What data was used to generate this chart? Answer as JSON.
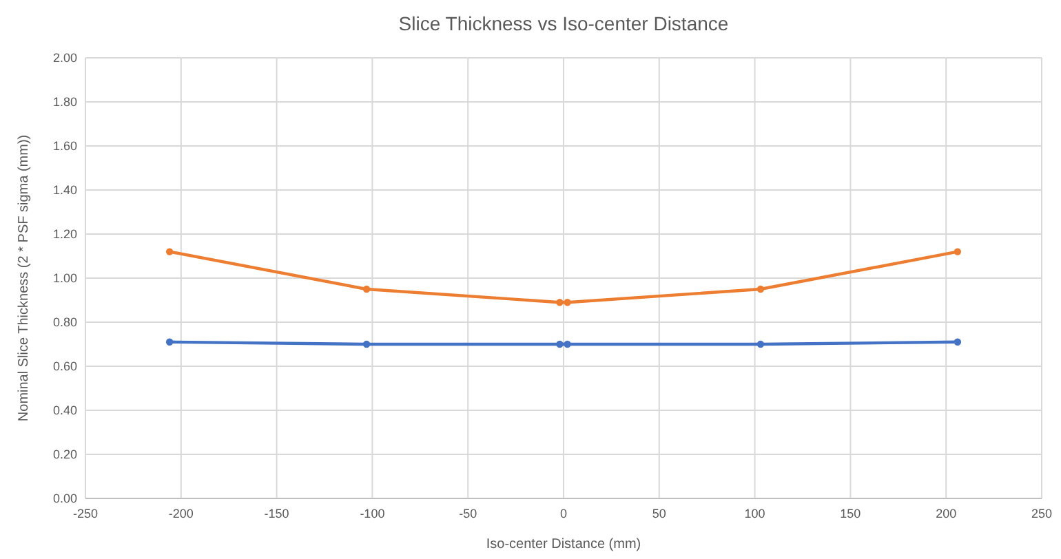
{
  "chart_data": {
    "type": "line",
    "title": "Slice Thickness vs Iso-center Distance",
    "xlabel": "Iso-center Distance (mm)",
    "ylabel": "Nominal Slice Thickness (2 * PSF sigma (mm))",
    "series": [
      {
        "color": "#4472c4",
        "x": [
          -206,
          -103,
          -2,
          2,
          103,
          206
        ],
        "values": [
          0.71,
          0.7,
          0.7,
          0.7,
          0.7,
          0.71
        ]
      },
      {
        "color": "#ed7d31",
        "x": [
          -206,
          -103,
          -2,
          2,
          103,
          206
        ],
        "values": [
          1.12,
          0.95,
          0.89,
          0.89,
          0.95,
          1.12
        ]
      }
    ],
    "xlim": [
      -250,
      250
    ],
    "xticks": [
      -250,
      -200,
      -150,
      -100,
      -50,
      0,
      50,
      100,
      150,
      200,
      250
    ],
    "ylim": [
      0,
      2
    ],
    "yticks": [
      {
        "value": 0,
        "label": "0.00"
      },
      {
        "value": 0.2,
        "label": "0.20"
      },
      {
        "value": 0.4,
        "label": "0.40"
      },
      {
        "value": 0.6,
        "label": "0.60"
      },
      {
        "value": 0.8,
        "label": "0.80"
      },
      {
        "value": 1,
        "label": "1.00"
      },
      {
        "value": 1.2,
        "label": "1.20"
      },
      {
        "value": 1.4,
        "label": "1.40"
      },
      {
        "value": 1.6,
        "label": "1.60"
      },
      {
        "value": 1.8,
        "label": "1.80"
      },
      {
        "value": 2,
        "label": "2.00"
      }
    ],
    "grid": true,
    "marker": "circle",
    "line_style": "solid"
  }
}
